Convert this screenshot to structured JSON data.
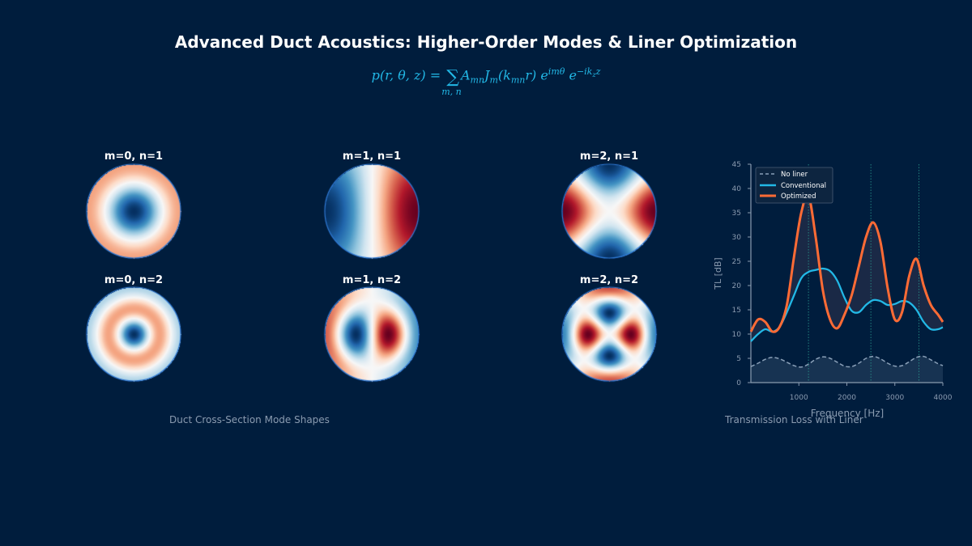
{
  "title": "Advanced Duct Acoustics: Higher-Order Modes & Liner Optimization",
  "formula": {
    "lhs": "p(r, θ, z) = ",
    "sum": "∑",
    "sum_sub": "m, n",
    "rhs_a": "A",
    "rhs_a_sub": "mn",
    "rhs_j": "J",
    "rhs_j_sub": "m",
    "rhs_arg": "(k",
    "rhs_arg_sub": "mn",
    "rhs_arg_end": "r) e",
    "exp1": "imθ",
    "rhs_e2": " e",
    "exp2": "−ik",
    "exp2_sub": "z",
    "exp2_end": "z"
  },
  "modes": {
    "caption": "Duct Cross-Section Mode Shapes",
    "items": [
      {
        "label": "m=0, n=1",
        "m": 0,
        "n": 1
      },
      {
        "label": "m=1, n=1",
        "m": 1,
        "n": 1
      },
      {
        "label": "m=2, n=1",
        "m": 2,
        "n": 1
      },
      {
        "label": "m=0, n=2",
        "m": 0,
        "n": 2
      },
      {
        "label": "m=1, n=2",
        "m": 1,
        "n": 2
      },
      {
        "label": "m=2, n=2",
        "m": 2,
        "n": 2
      }
    ],
    "colormap": [
      "#053061",
      "#2166ac",
      "#4393c3",
      "#92c5de",
      "#d1e5f0",
      "#f7f7f7",
      "#fddbc7",
      "#f4a582",
      "#d6604d",
      "#b2182b",
      "#67001f"
    ]
  },
  "chart_caption": "Transmission Loss with Liner",
  "chart_data": {
    "type": "line",
    "title": "",
    "xlabel": "Frequency [Hz]",
    "ylabel": "TL [dB]",
    "xlim": [
      0,
      4000
    ],
    "ylim": [
      0,
      45
    ],
    "xticks": [
      1000,
      2000,
      3000,
      4000
    ],
    "yticks": [
      0,
      5,
      10,
      15,
      20,
      25,
      30,
      35,
      40,
      45
    ],
    "vlines": [
      1200,
      2500,
      3500
    ],
    "legend_position": "top-left",
    "series": [
      {
        "name": "No liner",
        "color": "#8aa0b8",
        "style": "dashed",
        "x": [
          0,
          150,
          300,
          450,
          600,
          750,
          900,
          1050,
          1200,
          1350,
          1500,
          1650,
          1800,
          1950,
          2100,
          2250,
          2400,
          2550,
          2700,
          2850,
          3000,
          3150,
          3300,
          3450,
          3600,
          3750,
          3900,
          4000
        ],
        "y": [
          3.3,
          4.0,
          4.8,
          5.2,
          4.9,
          4.2,
          3.5,
          3.2,
          3.8,
          4.8,
          5.3,
          5.0,
          4.2,
          3.4,
          3.3,
          4.0,
          5.0,
          5.4,
          4.9,
          4.0,
          3.4,
          3.5,
          4.3,
          5.2,
          5.4,
          4.7,
          3.9,
          3.5
        ]
      },
      {
        "name": "Conventional",
        "color": "#22b8e6",
        "style": "solid",
        "x": [
          0,
          150,
          300,
          450,
          600,
          750,
          900,
          1050,
          1200,
          1350,
          1500,
          1650,
          1800,
          1950,
          2100,
          2250,
          2400,
          2550,
          2700,
          2850,
          3000,
          3150,
          3300,
          3450,
          3600,
          3750,
          3900,
          4000
        ],
        "y": [
          8.5,
          10.0,
          11.0,
          10.5,
          11.5,
          14.5,
          18.0,
          21.5,
          22.8,
          23.2,
          23.5,
          23.0,
          21.0,
          17.5,
          14.8,
          14.5,
          16.0,
          17.0,
          16.8,
          16.0,
          16.2,
          16.8,
          16.5,
          15.0,
          12.5,
          11.0,
          11.0,
          11.4
        ]
      },
      {
        "name": "Optimized",
        "color": "#ff6b35",
        "style": "solid",
        "x": [
          0,
          150,
          300,
          450,
          600,
          750,
          900,
          1050,
          1200,
          1350,
          1500,
          1650,
          1800,
          1950,
          2100,
          2250,
          2400,
          2550,
          2700,
          2850,
          3000,
          3150,
          3300,
          3450,
          3600,
          3750,
          3900,
          4000
        ],
        "y": [
          10.5,
          13.0,
          12.5,
          10.5,
          11.5,
          16.0,
          26.0,
          35.0,
          38.5,
          30.0,
          19.0,
          13.0,
          11.2,
          14.0,
          18.0,
          24.0,
          30.0,
          33.0,
          29.0,
          19.5,
          13.0,
          14.5,
          22.0,
          25.5,
          20.0,
          16.0,
          14.0,
          12.5
        ]
      }
    ]
  }
}
